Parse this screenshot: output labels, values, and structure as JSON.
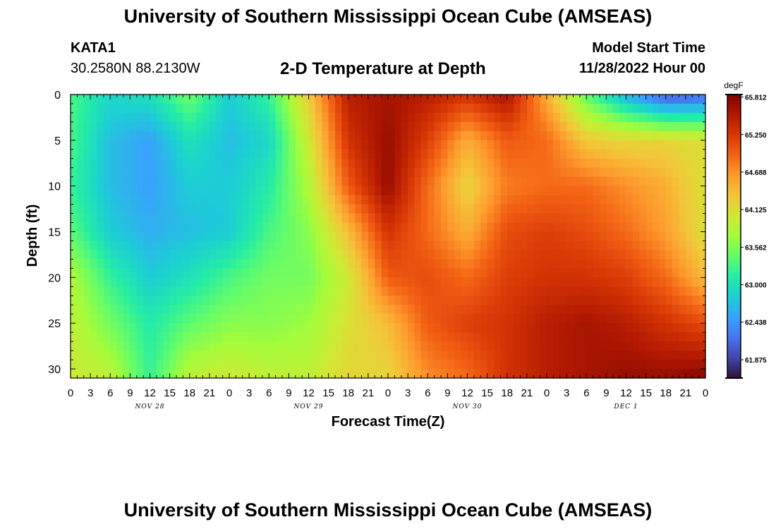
{
  "header": {
    "title": "University of Southern Mississippi Ocean Cube (AMSEAS)",
    "station": "KATA1",
    "coords": "30.2580N  88.2130W",
    "subtitle": "2-D Temperature at Depth",
    "model_start_label": "Model Start Time",
    "model_start_value": "11/28/2022 Hour 00"
  },
  "footer": {
    "title": "University of Southern Mississippi Ocean Cube (AMSEAS)"
  },
  "chart_data": {
    "type": "heatmap",
    "title": "2-D Temperature at Depth",
    "xlabel": "Forecast Time(Z)",
    "ylabel": "Depth (ft)",
    "xlim": [
      0,
      96
    ],
    "ylim": [
      0,
      31
    ],
    "x_tick_labels": [
      "0",
      "3",
      "6",
      "9",
      "12",
      "15",
      "18",
      "21",
      "0",
      "3",
      "6",
      "9",
      "12",
      "15",
      "18",
      "21",
      "0",
      "3",
      "6",
      "9",
      "12",
      "15",
      "18",
      "21",
      "0",
      "3",
      "6",
      "9",
      "12",
      "15",
      "18",
      "21",
      "0"
    ],
    "day_labels": [
      "NOV 28",
      "NOV 29",
      "NOV 30",
      "DEC 1"
    ],
    "y_ticks": [
      0,
      5,
      10,
      15,
      20,
      25,
      30
    ],
    "colorbar": {
      "unit": "degF",
      "min": 61.6,
      "max": 65.85,
      "ticks": [
        "65.812",
        "65.250",
        "64.688",
        "64.125",
        "63.562",
        "63.000",
        "62.438",
        "61.875"
      ],
      "colors": [
        "#30123b",
        "#4145ab",
        "#4675ed",
        "#39a2fc",
        "#1bcfd4",
        "#24eca6",
        "#61fc6c",
        "#a4fc3b",
        "#d1e834",
        "#f3c63a",
        "#fe9b2d",
        "#f36315",
        "#d93806",
        "#b11901",
        "#7a0402"
      ]
    },
    "grid_x_hours": [
      0,
      6,
      12,
      18,
      24,
      30,
      36,
      42,
      48,
      54,
      60,
      66,
      72,
      78,
      84,
      90,
      96
    ],
    "grid_depths_ft": [
      0,
      5,
      10,
      15,
      20,
      25,
      31
    ],
    "values_degF": [
      [
        63.3,
        62.9,
        63.0,
        63.5,
        62.8,
        63.2,
        64.3,
        65.5,
        65.6,
        65.5,
        65.3,
        65.6,
        64.5,
        63.4,
        62.6,
        62.0,
        62.1
      ],
      [
        63.3,
        62.7,
        62.5,
        63.0,
        62.7,
        62.9,
        64.0,
        65.3,
        65.7,
        65.2,
        64.5,
        65.0,
        64.9,
        64.3,
        64.2,
        64.2,
        64.1
      ],
      [
        63.2,
        62.7,
        62.5,
        62.8,
        62.8,
        63.1,
        63.8,
        65.0,
        65.7,
        64.9,
        64.2,
        64.8,
        64.9,
        64.9,
        64.7,
        64.5,
        64.1
      ],
      [
        63.4,
        62.8,
        62.6,
        62.7,
        62.8,
        63.3,
        63.6,
        64.4,
        65.3,
        64.9,
        64.5,
        65.1,
        65.2,
        65.1,
        64.9,
        64.6,
        64.1
      ],
      [
        63.8,
        63.2,
        62.8,
        63.0,
        63.3,
        63.5,
        63.5,
        64.0,
        65.0,
        65.1,
        64.9,
        65.2,
        65.3,
        65.3,
        65.2,
        64.9,
        64.4
      ],
      [
        63.9,
        63.5,
        63.1,
        63.4,
        63.6,
        63.6,
        63.7,
        64.1,
        64.4,
        65.0,
        65.2,
        65.3,
        65.5,
        65.6,
        65.5,
        65.3,
        65.1
      ],
      [
        64.0,
        63.9,
        63.2,
        63.9,
        64.0,
        63.9,
        63.9,
        64.2,
        64.2,
        64.7,
        64.9,
        65.3,
        65.5,
        65.6,
        65.7,
        65.7,
        65.8
      ]
    ]
  }
}
